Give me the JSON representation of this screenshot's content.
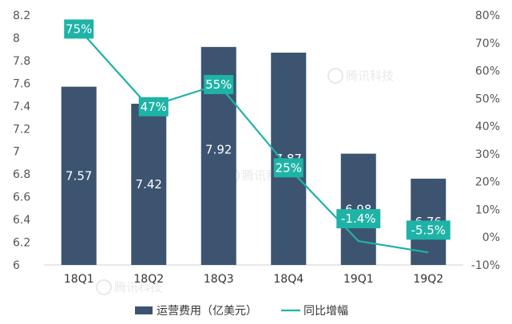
{
  "chart_data": {
    "type": "bar",
    "categories": [
      "18Q1",
      "18Q2",
      "18Q3",
      "18Q4",
      "19Q1",
      "19Q2"
    ],
    "series": [
      {
        "name": "运营费用（亿美元）",
        "type": "bar",
        "axis": "left",
        "values": [
          7.57,
          7.42,
          7.92,
          7.87,
          6.98,
          6.76
        ],
        "labels": [
          "7.57",
          "7.42",
          "7.92",
          "7.87",
          "6.98",
          "6.76"
        ],
        "color": "#3c5470"
      },
      {
        "name": "同比增幅",
        "type": "line",
        "axis": "right",
        "values": [
          75,
          47,
          55,
          25,
          -1.4,
          -5.5
        ],
        "labels": [
          "75%",
          "47%",
          "55%",
          "25%",
          "-1.4%",
          "-5.5%"
        ],
        "color": "#1eb3a6"
      }
    ],
    "ylim_left": [
      6,
      8.2
    ],
    "yticks_left": [
      "6",
      "6.2",
      "6.4",
      "6.6",
      "6.8",
      "7",
      "7.2",
      "7.4",
      "7.6",
      "7.8",
      "8",
      "8.2"
    ],
    "ylim_right": [
      -10,
      80
    ],
    "yticks_right": [
      "-10%",
      "0%",
      "10%",
      "20%",
      "30%",
      "40%",
      "50%",
      "60%",
      "70%",
      "80%"
    ],
    "legend_position": "bottom",
    "grid": false
  },
  "watermark": "腾讯科技"
}
